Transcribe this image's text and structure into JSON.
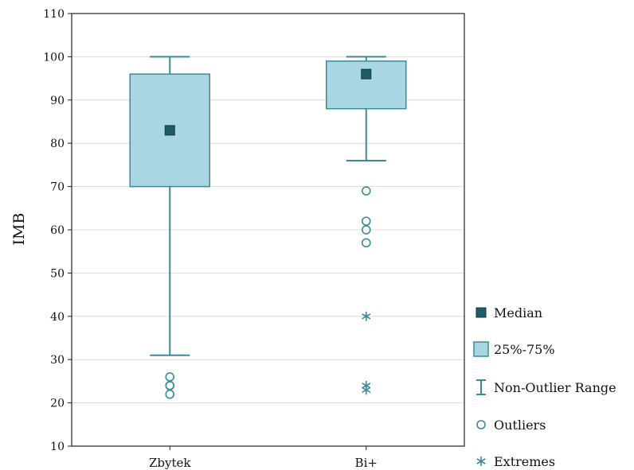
{
  "chart_data": {
    "type": "boxplot",
    "title": "",
    "xlabel": "",
    "ylabel": "IMB",
    "ylim": [
      10,
      110
    ],
    "yticks": [
      10,
      20,
      30,
      40,
      50,
      60,
      70,
      80,
      90,
      100,
      110
    ],
    "grid": true,
    "legend_position": "right",
    "colors": {
      "box_fill": "#aad6e3",
      "stroke": "#3a8b98",
      "median_marker": "#1e5c66"
    },
    "categories": [
      "Zbytek",
      "Bi+"
    ],
    "series": [
      {
        "category": "Zbytek",
        "median": 83,
        "q1": 70,
        "q3": 96,
        "whisker_low": 31,
        "whisker_high": 100,
        "outliers": [
          26,
          24,
          24,
          22
        ],
        "extremes": []
      },
      {
        "category": "Bi+",
        "median": 96,
        "q1": 88,
        "q3": 99,
        "whisker_low": 76,
        "whisker_high": 100,
        "outliers": [
          69,
          62,
          60,
          57
        ],
        "extremes": [
          40,
          24,
          23
        ]
      }
    ],
    "legend": [
      {
        "key": "median",
        "label": "Median"
      },
      {
        "key": "box",
        "label": "25%-75%"
      },
      {
        "key": "range",
        "label": "Non-Outlier Range"
      },
      {
        "key": "outliers",
        "label": "Outliers"
      },
      {
        "key": "extremes",
        "label": "Extremes"
      }
    ]
  }
}
